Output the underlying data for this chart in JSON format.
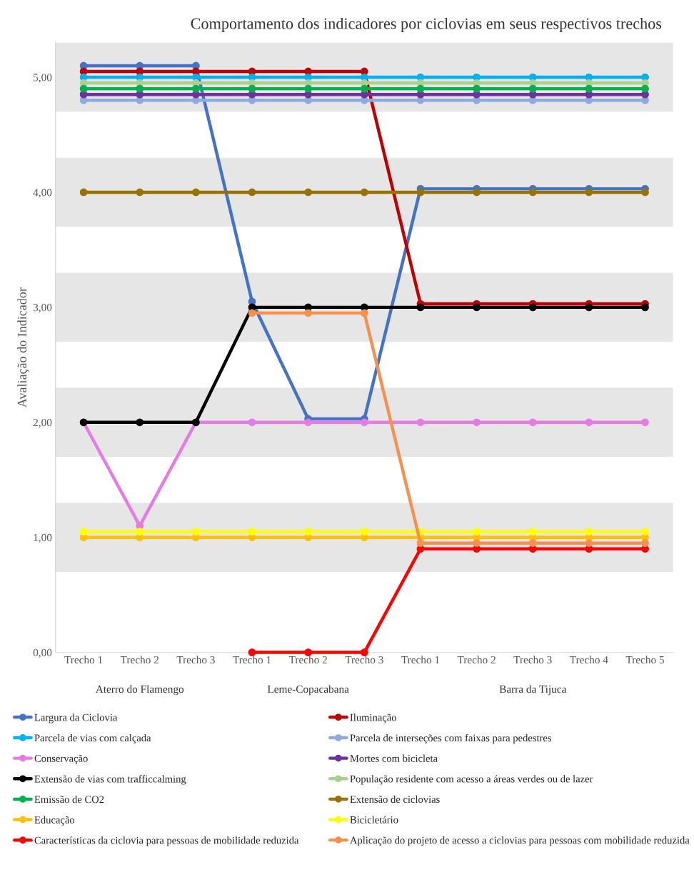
{
  "chart_data": {
    "type": "line",
    "title": "Comportamento dos indicadores por ciclovias em seus respectivos trechos",
    "ylabel": "Avaliação do Indicador",
    "categories": [
      "Trecho 1",
      "Trecho 2",
      "Trecho 3",
      "Trecho 1",
      "Trecho 2",
      "Trecho 3",
      "Trecho 1",
      "Trecho 2",
      "Trecho 3",
      "Trecho 4",
      "Trecho 5"
    ],
    "annotations": [
      "Aterro do Flamengo",
      "Leme-Copacabana",
      "Barra da Tijuca"
    ],
    "ylim": [
      0,
      5.3
    ],
    "yticks": [
      {
        "value": 0,
        "label": "0,00"
      },
      {
        "value": 1,
        "label": "1,00"
      },
      {
        "value": 2,
        "label": "2,00"
      },
      {
        "value": 3,
        "label": "3,00"
      },
      {
        "value": 4,
        "label": "4,00"
      },
      {
        "value": 5,
        "label": "5,00"
      }
    ],
    "bands": [
      {
        "axis": "y",
        "from": 0.7,
        "to": 1.3,
        "color": "#e6e6e6"
      },
      {
        "axis": "y",
        "from": 1.7,
        "to": 2.3,
        "color": "#e6e6e6"
      },
      {
        "axis": "y",
        "from": 2.7,
        "to": 3.3,
        "color": "#e6e6e6"
      },
      {
        "axis": "y",
        "from": 3.7,
        "to": 4.3,
        "color": "#e6e6e6"
      },
      {
        "axis": "y",
        "from": 4.7,
        "to": 5.3,
        "color": "#e6e6e6"
      }
    ],
    "grid": false,
    "legend": "bottom",
    "marker": "circle",
    "line_style": "solid",
    "series": [
      {
        "name": "Largura da Ciclovia",
        "color": "#4472c4",
        "values": [
          5.1,
          5.1,
          5.1,
          3.05,
          2.03,
          2.03,
          4.03,
          4.03,
          4.03,
          4.03,
          4.03
        ]
      },
      {
        "name": "Iluminação",
        "color": "#c00000",
        "values": [
          5.05,
          5.05,
          5.05,
          5.05,
          5.05,
          5.05,
          3.03,
          3.03,
          3.03,
          3.03,
          3.03
        ]
      },
      {
        "name": "Parcela de vias com calçada",
        "color": "#00b0f0",
        "values": [
          5.0,
          5.0,
          5.0,
          5.0,
          5.0,
          5.0,
          5.0,
          5.0,
          5.0,
          5.0,
          5.0
        ]
      },
      {
        "name": "Parcela de interseções com faixas para pedestres",
        "color": "#8faadc",
        "values": [
          4.8,
          4.8,
          4.8,
          4.8,
          4.8,
          4.8,
          4.8,
          4.8,
          4.8,
          4.8,
          4.8
        ]
      },
      {
        "name": "Conservação",
        "color": "#e67be6",
        "values": [
          2.0,
          1.1,
          2.0,
          2.0,
          2.0,
          2.0,
          2.0,
          2.0,
          2.0,
          2.0,
          2.0
        ]
      },
      {
        "name": "Mortes com bicicleta",
        "color": "#7030a0",
        "values": [
          4.85,
          4.85,
          4.85,
          4.85,
          4.85,
          4.85,
          4.85,
          4.85,
          4.85,
          4.85,
          4.85
        ]
      },
      {
        "name": "Extensão de vias com trafficcalming",
        "color": "#000000",
        "values": [
          2.0,
          2.0,
          2.0,
          3.0,
          3.0,
          3.0,
          3.0,
          3.0,
          3.0,
          3.0,
          3.0
        ]
      },
      {
        "name": "População residente com acesso a áreas verdes ou de lazer",
        "color": "#a9d18e",
        "values": [
          4.95,
          4.95,
          4.95,
          4.95,
          4.95,
          4.95,
          4.95,
          4.95,
          4.95,
          4.95,
          4.95
        ]
      },
      {
        "name": "Emissão de CO2",
        "color": "#00b050",
        "values": [
          4.9,
          4.9,
          4.9,
          4.9,
          4.9,
          4.9,
          4.9,
          4.9,
          4.9,
          4.9,
          4.9
        ]
      },
      {
        "name": "Extensão de ciclovias",
        "color": "#997300",
        "values": [
          4.0,
          4.0,
          4.0,
          4.0,
          4.0,
          4.0,
          4.0,
          4.0,
          4.0,
          4.0,
          4.0
        ]
      },
      {
        "name": "Educação",
        "color": "#ffc000",
        "values": [
          1.0,
          1.0,
          1.0,
          1.0,
          1.0,
          1.0,
          1.0,
          1.0,
          1.0,
          1.0,
          1.0
        ]
      },
      {
        "name": "Bicicletário",
        "color": "#ffff00",
        "values": [
          1.05,
          1.05,
          1.05,
          1.05,
          1.05,
          1.05,
          1.05,
          1.05,
          1.05,
          1.05,
          1.05
        ]
      },
      {
        "name": "Características da ciclovia para pessoas de mobilidade reduzida",
        "color": "#ff0000",
        "values": [
          null,
          null,
          null,
          0.0,
          0.0,
          0.0,
          0.9,
          0.9,
          0.9,
          0.9,
          0.9
        ]
      },
      {
        "name": "Aplicação do projeto de acesso a ciclovias para pessoas com mobilidade reduzida",
        "color": "#f4914f",
        "values": [
          null,
          null,
          null,
          2.95,
          2.95,
          2.95,
          0.95,
          0.95,
          0.95,
          0.95,
          0.95
        ]
      }
    ]
  }
}
